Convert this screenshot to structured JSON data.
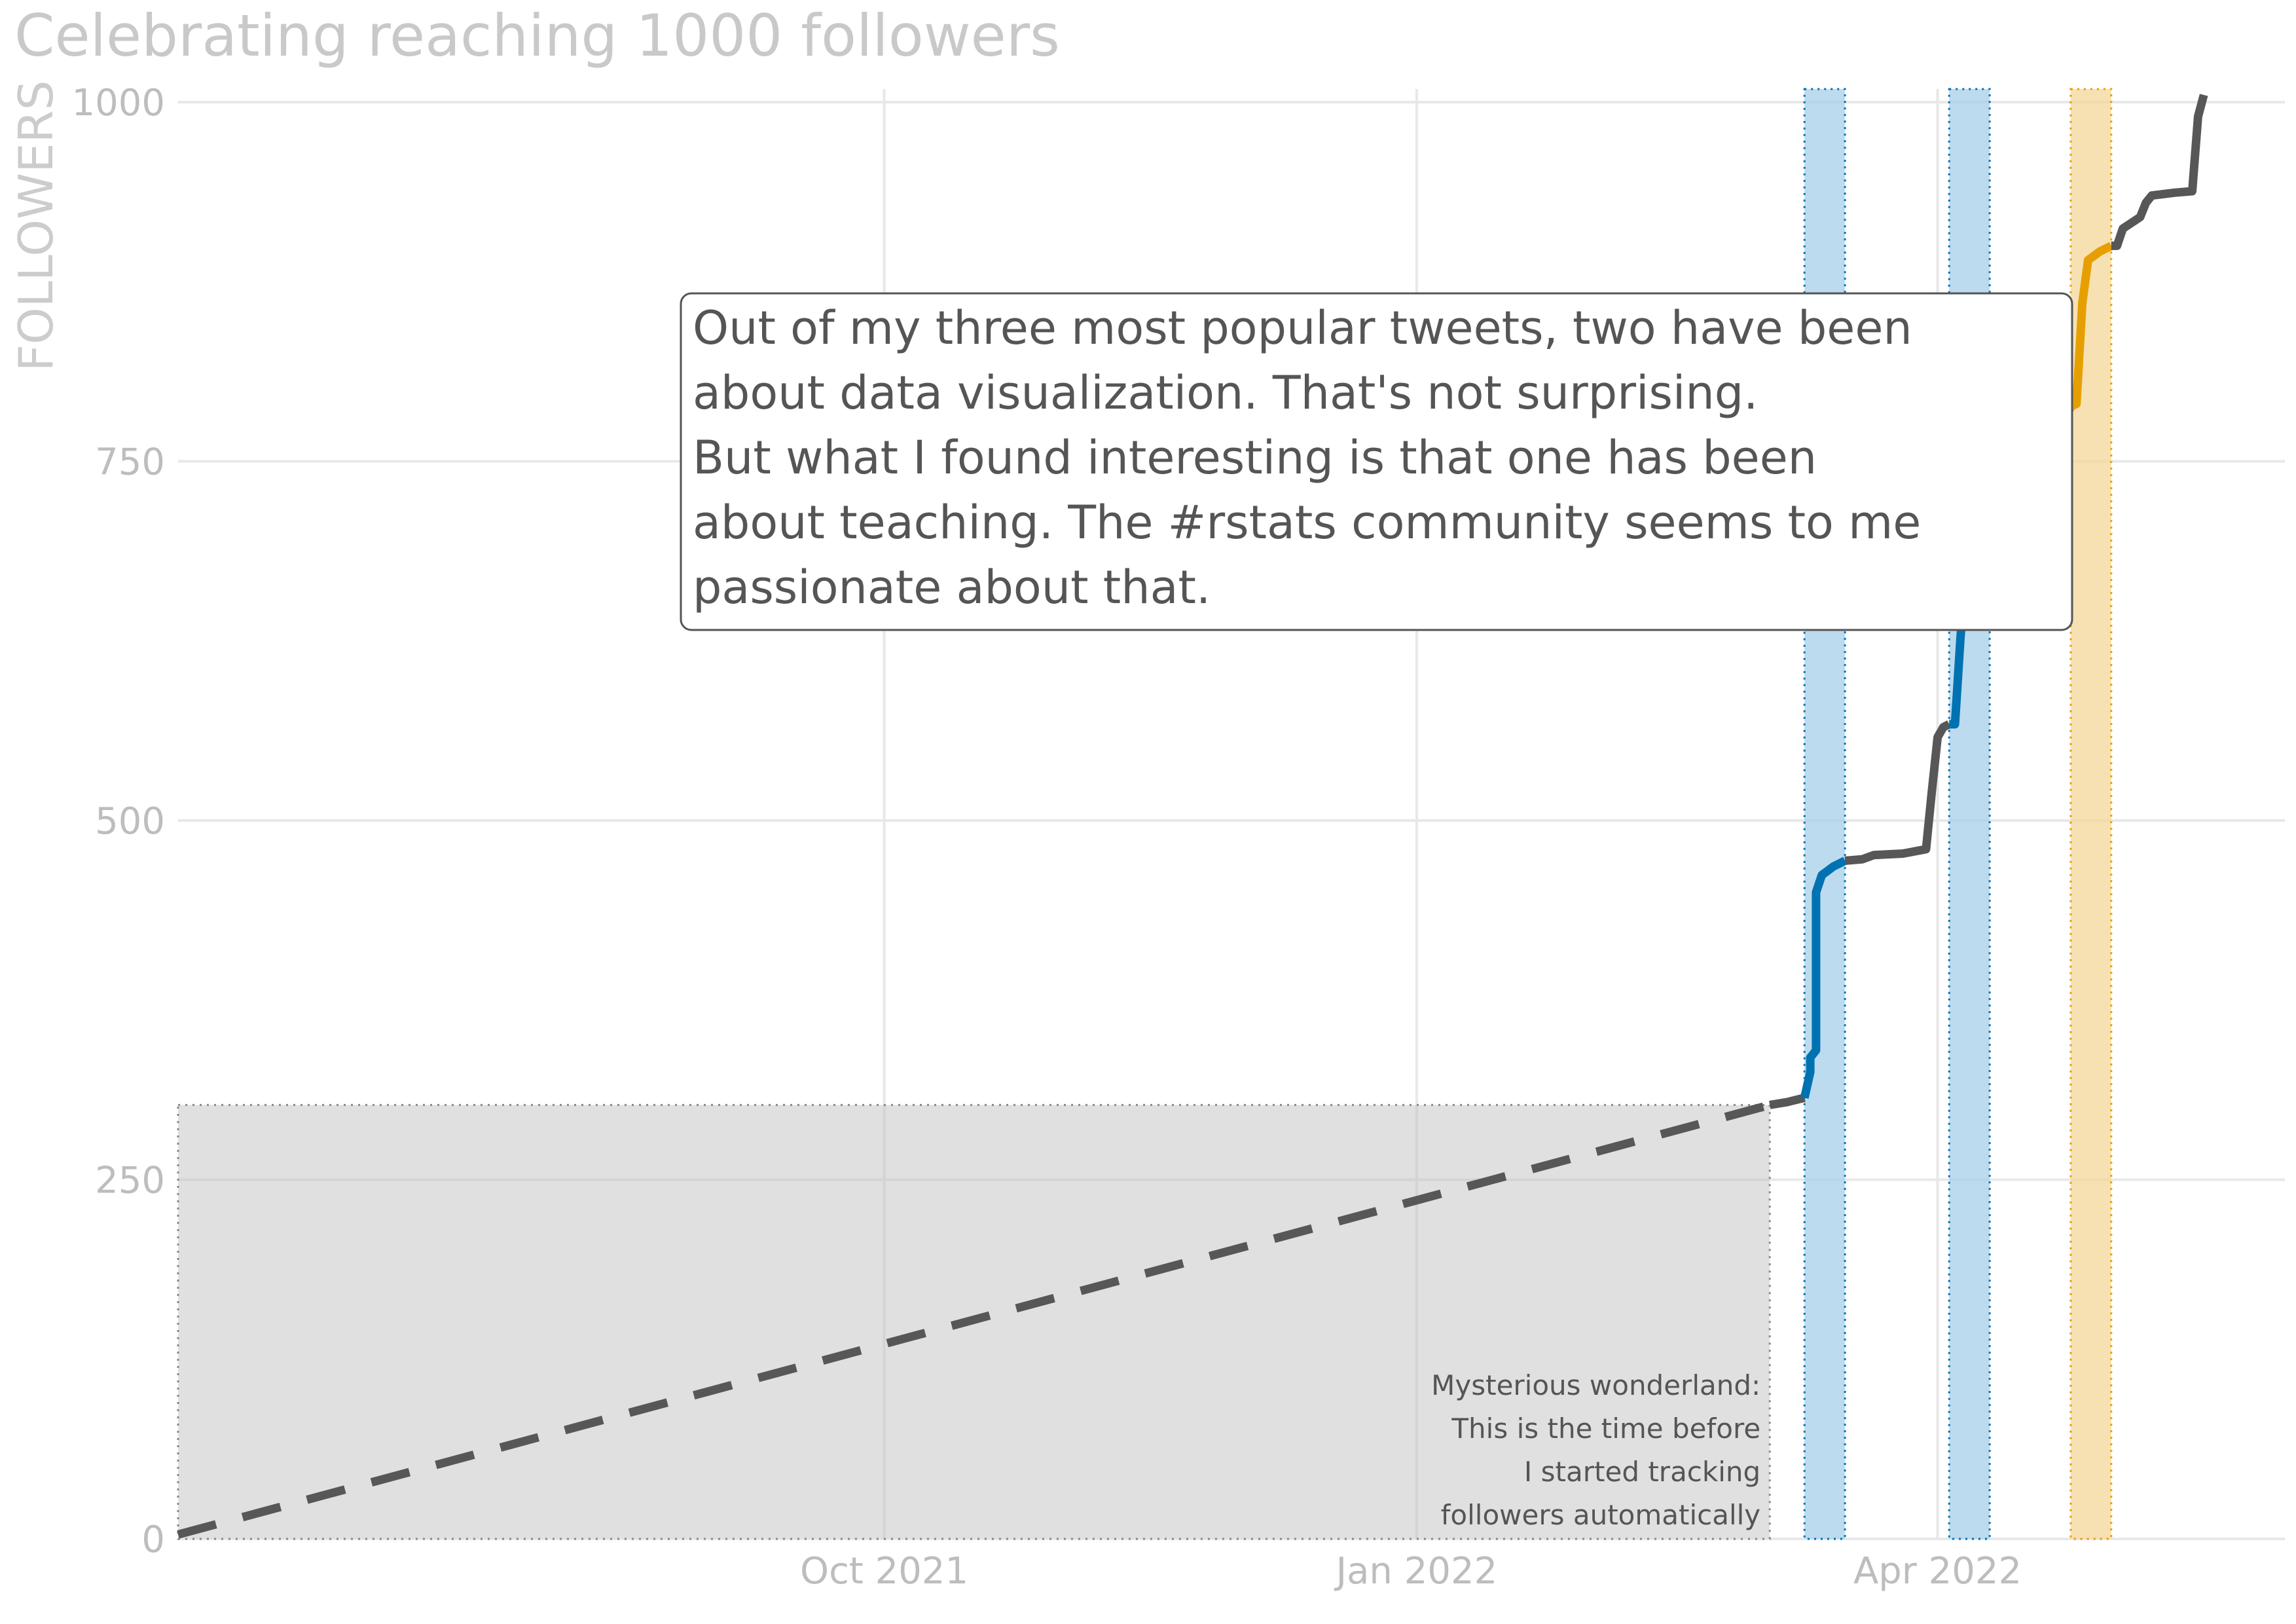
{
  "chart_data": {
    "type": "line",
    "title": "Celebrating reaching 1000 followers",
    "xlabel": "",
    "ylabel": "FOLLOWERS",
    "ylim": [
      0,
      1000
    ],
    "xlim": [
      "2021-06-01",
      "2022-05-31"
    ],
    "yticks": [
      0,
      250,
      500,
      750,
      1000
    ],
    "yticklabels": [
      "0",
      "250",
      "500",
      "750",
      "1000"
    ],
    "xticks": [
      "2021-10-01",
      "2022-01-01",
      "2022-04-01"
    ],
    "xticklabels": [
      "Oct 2021",
      "Jan 2022",
      "Apr 2022"
    ],
    "grid": true,
    "colors": {
      "observed": "#575757",
      "estimated": "#575757",
      "highlight_blue": "#0072b2",
      "highlight_orange": "#e69f00",
      "band_blue": "#a6cfe8",
      "band_orange": "#f4d79a",
      "untracked_fill": "#e0e0e0"
    },
    "untracked_period": {
      "x_start": "2021-06-01",
      "x_end": "2022-03-03",
      "y_max": 302,
      "annotation": [
        "Mysterious wonderland:",
        "This is the time before",
        "I started tracking",
        "followers automatically"
      ]
    },
    "highlight_bands": [
      {
        "x_start": "2022-03-09",
        "x_end": "2022-03-16",
        "color": "blue"
      },
      {
        "x_start": "2022-04-03",
        "x_end": "2022-04-10",
        "color": "blue"
      },
      {
        "x_start": "2022-04-24",
        "x_end": "2022-05-01",
        "color": "orange"
      }
    ],
    "series": [
      {
        "style": "dashed",
        "color": "estimated",
        "x": [
          "2021-06-01",
          "2022-03-03"
        ],
        "y": [
          3,
          302
        ]
      },
      {
        "style": "solid",
        "color": "observed",
        "x": [
          "2022-03-03",
          "2022-03-06",
          "2022-03-09"
        ],
        "y": [
          302,
          304,
          307
        ]
      },
      {
        "style": "solid",
        "color": "highlight_blue",
        "x": [
          "2022-03-09",
          "2022-03-10",
          "2022-03-10",
          "2022-03-11",
          "2022-03-11",
          "2022-03-12",
          "2022-03-13",
          "2022-03-14",
          "2022-03-15",
          "2022-03-16"
        ],
        "y": [
          307,
          325,
          335,
          340,
          450,
          462,
          465,
          468,
          470,
          472
        ]
      },
      {
        "style": "solid",
        "color": "observed",
        "x": [
          "2022-03-16",
          "2022-03-19",
          "2022-03-21",
          "2022-03-26",
          "2022-03-30",
          "2022-03-31",
          "2022-04-01",
          "2022-04-02",
          "2022-04-03"
        ],
        "y": [
          472,
          473,
          476,
          477,
          480,
          520,
          558,
          565,
          567
        ]
      },
      {
        "style": "solid",
        "color": "highlight_blue",
        "x": [
          "2022-04-03",
          "2022-04-04",
          "2022-04-05",
          "2022-04-06",
          "2022-04-07",
          "2022-04-08",
          "2022-04-09",
          "2022-04-10"
        ],
        "y": [
          567,
          567,
          630,
          658,
          680,
          700,
          715,
          725
        ]
      },
      {
        "style": "solid",
        "color": "observed",
        "x": [
          "2022-04-10",
          "2022-04-13",
          "2022-04-15",
          "2022-04-16",
          "2022-04-18",
          "2022-04-19",
          "2022-04-21",
          "2022-04-23",
          "2022-04-24"
        ],
        "y": [
          725,
          732,
          735,
          745,
          752,
          763,
          771,
          780,
          788
        ]
      },
      {
        "style": "solid",
        "color": "highlight_orange",
        "x": [
          "2022-04-24",
          "2022-04-25",
          "2022-04-26",
          "2022-04-27",
          "2022-04-28",
          "2022-04-29",
          "2022-04-30",
          "2022-05-01"
        ],
        "y": [
          788,
          790,
          860,
          890,
          893,
          896,
          898,
          900
        ]
      },
      {
        "style": "solid",
        "color": "observed",
        "x": [
          "2022-05-01",
          "2022-05-02",
          "2022-05-03",
          "2022-05-06",
          "2022-05-07",
          "2022-05-08",
          "2022-05-12",
          "2022-05-15",
          "2022-05-16",
          "2022-05-17"
        ],
        "y": [
          900,
          900,
          912,
          920,
          930,
          935,
          937,
          938,
          990,
          1005
        ]
      }
    ],
    "callout": [
      "Out of my three most popular tweets, two have been",
      "about data visualization. That's not surprising.",
      "But what I found interesting is that one has been",
      "about teaching. The #rstats community seems to me",
      "passionate about that."
    ]
  }
}
